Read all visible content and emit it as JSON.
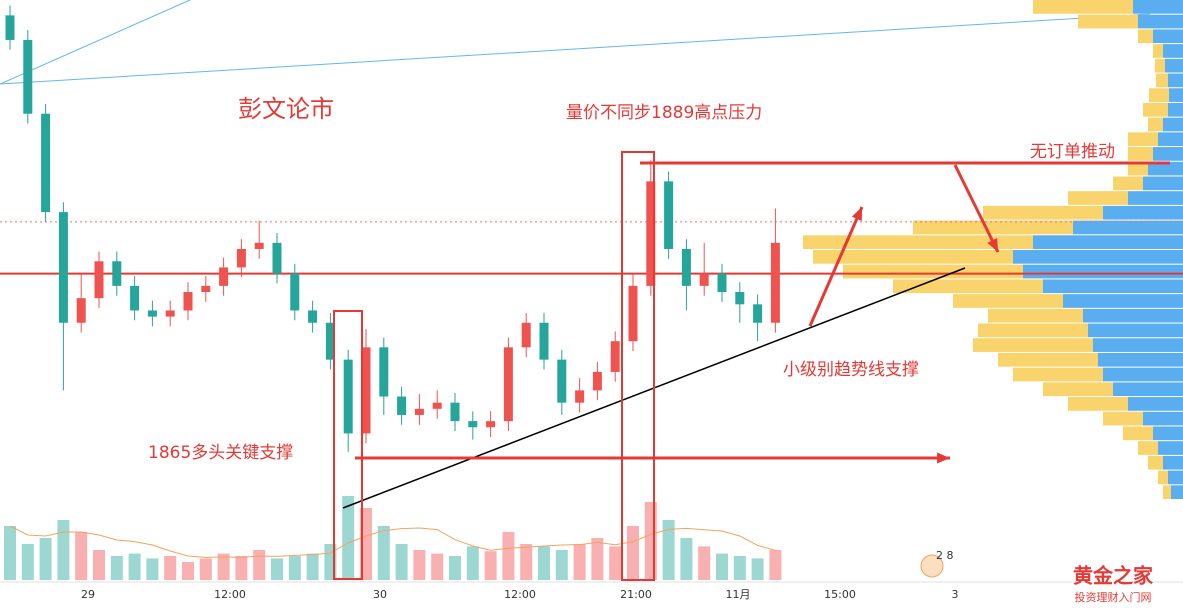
{
  "chart_data": {
    "type": "candlestick",
    "annotations": [
      "彭文论市",
      "量价不同步1889高点压力",
      "无订单推动",
      "小级别趋势线支撑",
      "1865多头关键支撑"
    ],
    "x_labels": [
      "29",
      "12:00",
      "30",
      "12:00",
      "21:00",
      "11月",
      "15:00",
      "3"
    ],
    "badge": "2 8",
    "watermark": "黄金之家",
    "watermark_sub": "投资理财入门网",
    "ylim": [
      1852.8,
      1902.25
    ],
    "vlim": [
      0,
      100
    ],
    "up_color": "#ef5350",
    "down_color": "#26a69a",
    "level_solid": 1880,
    "level_dotted": 1884.2,
    "open": [
      1901,
      1899,
      1893,
      1885,
      1876,
      1878,
      1881,
      1879,
      1877,
      1876.5,
      1877,
      1878.5,
      1879,
      1880.5,
      1882,
      1882.5,
      1880,
      1877,
      1876,
      1873,
      1867,
      1874,
      1870,
      1868.5,
      1869,
      1869.5,
      1868,
      1867.5,
      1868,
      1874,
      1876,
      1873,
      1869.5,
      1870.5,
      1872,
      1874.5,
      1879,
      1887.5,
      1882,
      1879,
      1880,
      1878.5,
      1877.5,
      1876
    ],
    "high": [
      1901.8,
      1899.8,
      1893.8,
      1885.8,
      1880,
      1881.8,
      1881.8,
      1879.8,
      1877.8,
      1877.8,
      1879.3,
      1879.8,
      1881.3,
      1882.8,
      1884.3,
      1883.3,
      1880.8,
      1877.8,
      1876.8,
      1873.8,
      1875.5,
      1874.8,
      1870.8,
      1870.2,
      1870.5,
      1870.3,
      1868.8,
      1868.8,
      1874.8,
      1876.8,
      1876.8,
      1873.8,
      1871.5,
      1872.8,
      1875.3,
      1880,
      1889.2,
      1888.3,
      1882.8,
      1882.5,
      1880.8,
      1879.3,
      1878.3,
      1885.3
    ],
    "low": [
      1898.2,
      1892.2,
      1884.2,
      1870.5,
      1875.2,
      1877.2,
      1878.2,
      1876.2,
      1875.7,
      1875.7,
      1876.2,
      1877.7,
      1878.2,
      1879.7,
      1881.2,
      1879.2,
      1876.2,
      1875.2,
      1872.2,
      1865.5,
      1866.2,
      1868.5,
      1867.7,
      1867.7,
      1868.2,
      1867.2,
      1866.5,
      1866.7,
      1867.2,
      1873.2,
      1872.2,
      1868.5,
      1868.7,
      1869.7,
      1871.2,
      1873.7,
      1878.2,
      1881.2,
      1877,
      1878.2,
      1877.7,
      1876,
      1874.5,
      1875.2
    ],
    "close": [
      1899,
      1893,
      1885,
      1876,
      1878,
      1881,
      1879,
      1877,
      1876.5,
      1877,
      1878.5,
      1879,
      1880.5,
      1882,
      1882.5,
      1880,
      1877,
      1876,
      1873,
      1867,
      1874,
      1870,
      1868.5,
      1869,
      1869.5,
      1868,
      1867.5,
      1868,
      1874,
      1876,
      1873,
      1869.5,
      1870.5,
      1872,
      1874.5,
      1879,
      1887.5,
      1882,
      1879,
      1880,
      1878.5,
      1877.5,
      1876,
      1882.5
    ],
    "volume": [
      45,
      30,
      35,
      50,
      40,
      25,
      20,
      22,
      18,
      20,
      15,
      18,
      22,
      20,
      25,
      18,
      20,
      22,
      30,
      70,
      60,
      45,
      30,
      25,
      22,
      20,
      28,
      24,
      40,
      30,
      28,
      25,
      30,
      35,
      28,
      45,
      65,
      50,
      35,
      28,
      22,
      20,
      18,
      25
    ],
    "profile_sell": [
      50,
      45,
      30,
      20,
      18,
      15,
      14,
      15,
      20,
      25,
      30,
      35,
      40,
      55,
      80,
      110,
      150,
      170,
      160,
      140,
      120,
      100,
      95,
      90,
      85,
      80,
      70,
      55,
      40,
      30,
      25,
      20,
      15,
      12
    ],
    "profile_buy": [
      100,
      60,
      15,
      10,
      10,
      12,
      20,
      25,
      15,
      30,
      25,
      20,
      30,
      60,
      120,
      160,
      230,
      200,
      180,
      150,
      110,
      95,
      110,
      120,
      100,
      90,
      70,
      60,
      40,
      30,
      20,
      15,
      10,
      8
    ]
  }
}
